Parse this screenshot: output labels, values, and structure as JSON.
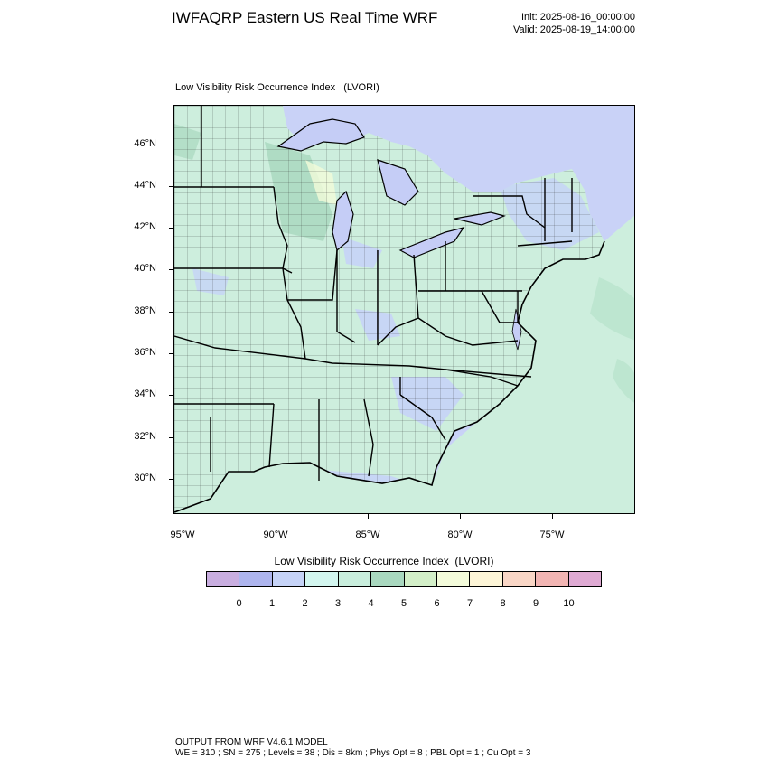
{
  "header": {
    "title": "IWFAQRP Eastern US Real Time WRF",
    "init": "Init: 2025-08-16_00:00:00",
    "valid": "Valid: 2025-08-19_14:00:00"
  },
  "panel": {
    "title": "Low Visibility Risk Occurrence Index   (LVORI)"
  },
  "map": {
    "lat_labels": [
      "46°N",
      "44°N",
      "42°N",
      "40°N",
      "38°N",
      "36°N",
      "34°N",
      "32°N",
      "30°N"
    ],
    "lon_labels": [
      "95°W",
      "90°W",
      "85°W",
      "80°W",
      "75°W"
    ],
    "colors": {
      "land": "#cdeedd",
      "water": "#c9d2f7",
      "lake": "#c5cdf6",
      "ocean": "#cdeedd",
      "boundary": "#000000",
      "county": "#222222"
    }
  },
  "colorbar": {
    "title": "Low Visibility Risk Occurrence Index  (LVORI)",
    "labels": [
      "0",
      "1",
      "2",
      "3",
      "4",
      "5",
      "6",
      "7",
      "8",
      "9",
      "10"
    ],
    "colors": [
      "#c9aee0",
      "#aeb5ee",
      "#c6d3f7",
      "#d3f6ef",
      "#c9eedd",
      "#a9d8bf",
      "#d3efc8",
      "#f3fbda",
      "#fdf5d7",
      "#f9d6c6",
      "#f2b5b3",
      "#dfaad3"
    ]
  },
  "footer": {
    "line1": "OUTPUT FROM WRF V4.6.1 MODEL",
    "line2": "WE = 310 ; SN = 275 ; Levels = 38 ; Dis = 8km ; Phys Opt = 8 ; PBL Opt = 1 ; Cu Opt = 3"
  }
}
